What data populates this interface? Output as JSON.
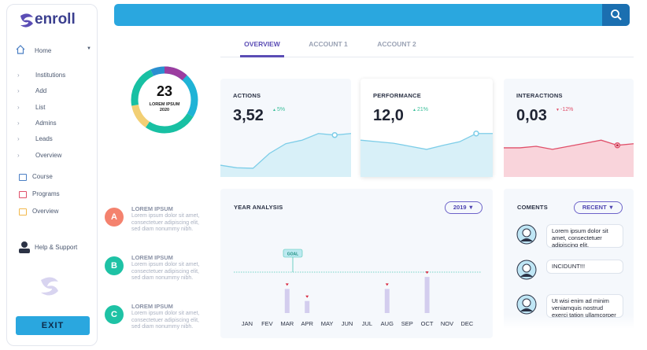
{
  "sidebar": {
    "logo": "enroll",
    "home": "Home",
    "submenu": [
      "Institutions",
      "Add",
      "List",
      "Admins",
      "Leads",
      "Overview"
    ],
    "links": [
      "Course",
      "Programs",
      "Overview"
    ],
    "help": "Help & Support",
    "exit": "EXIT"
  },
  "tabs": [
    "OVERVIEW",
    "ACCOUNT 1",
    "ACCOUNT 2"
  ],
  "summary": {
    "value": "23",
    "label": "LOREM IPSUM",
    "year": "2020"
  },
  "notes": [
    {
      "badge": "A",
      "title": "LOREM IPSUM",
      "text": "Lorem ipsum dolor sit amet, consectetuer adipiscing elit, sed diam nonummy nibh."
    },
    {
      "badge": "B",
      "title": "LOREM IPSUM",
      "text": "Lorem ipsum dolor sit amet, consectetuer adipiscing elit, sed diam nonummy nibh."
    },
    {
      "badge": "C",
      "title": "LOREM IPSUM",
      "text": "Lorem ipsum dolor sit amet, consectetuer adipiscing elit, sed diam nonummy nibh."
    }
  ],
  "cards": [
    {
      "title": "ACTIONS",
      "value": "3,52",
      "change": "5%",
      "trend": [
        23,
        18,
        17,
        46,
        65,
        72,
        85,
        82,
        85
      ]
    },
    {
      "title": "PERFORMANCE",
      "value": "12,0",
      "change": "21%",
      "trend": [
        72,
        69,
        66,
        60,
        54,
        62,
        69,
        85,
        85
      ]
    },
    {
      "title": "INTERACTIONS",
      "value": "0,03",
      "change": "-12%",
      "trend": [
        57,
        57,
        60,
        54,
        60,
        66,
        72,
        62,
        65
      ]
    }
  ],
  "year_analysis": {
    "title": "YEAR ANALYSIS",
    "year": "2019",
    "goal_label": "GOAL",
    "goal": 51,
    "ylim": [
      0,
      100
    ],
    "months": [
      "JAN",
      "FEV",
      "MAR",
      "APR",
      "MAY",
      "JUN",
      "JUL",
      "AUG",
      "SEP",
      "OCT",
      "NOV",
      "DEC"
    ],
    "values": [
      null,
      null,
      30,
      15,
      null,
      null,
      null,
      30,
      null,
      45,
      null,
      null
    ]
  },
  "comments": {
    "title": "COMENTS",
    "filter": "RECENT",
    "items": [
      "Lorem ipsum dolor sit amet, consectetuer adipiscing elit.",
      "INCIDUNT!!!",
      "Ut wisi enim ad minim veniamquis nostrud exerci tation ullamcorper"
    ]
  }
}
